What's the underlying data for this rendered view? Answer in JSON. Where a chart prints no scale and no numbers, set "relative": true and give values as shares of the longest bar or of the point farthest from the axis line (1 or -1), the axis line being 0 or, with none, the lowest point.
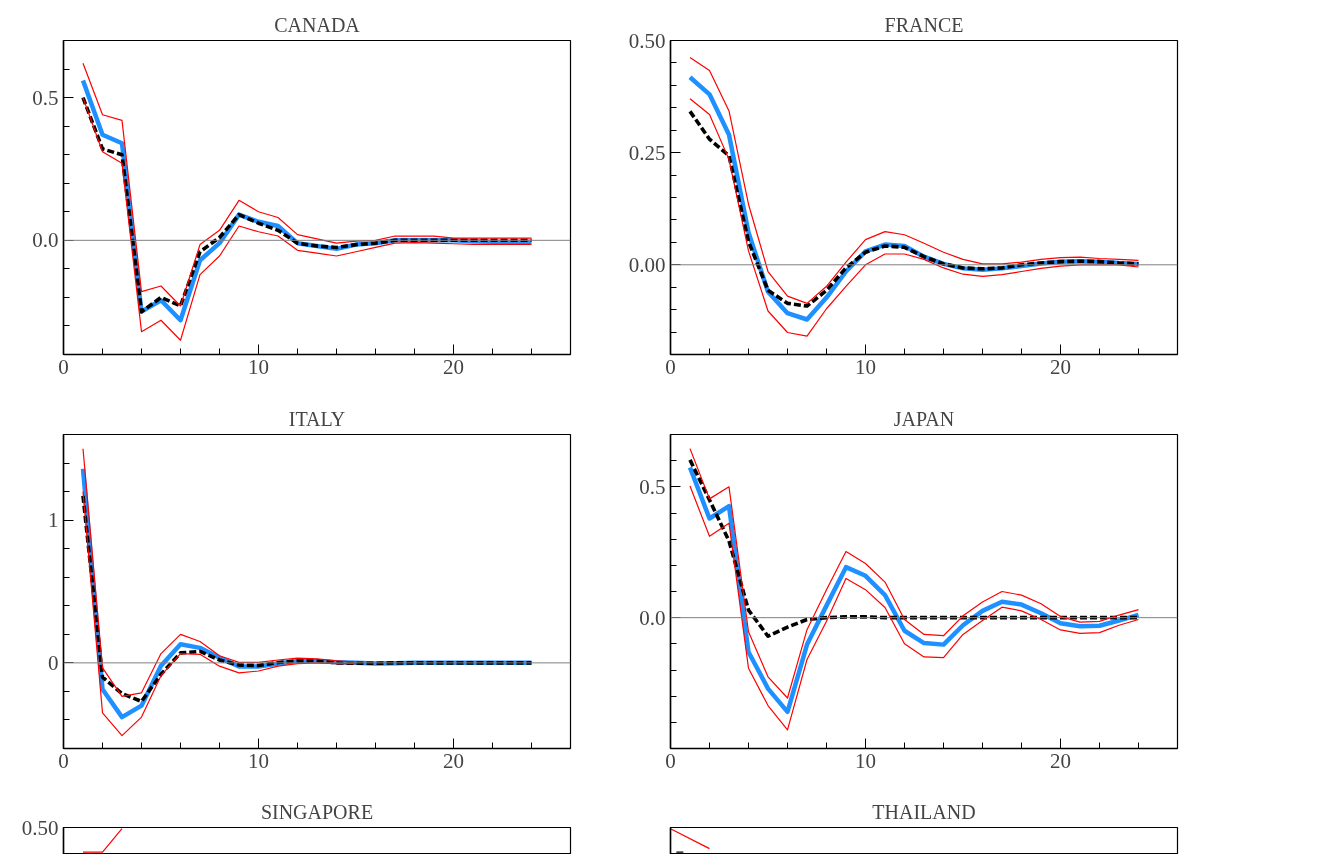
{
  "chart_data": [
    {
      "type": "line",
      "title": "CANADA",
      "x": [
        1,
        2,
        3,
        4,
        5,
        6,
        7,
        8,
        9,
        10,
        11,
        12,
        13,
        14,
        15,
        16,
        17,
        18,
        19,
        20,
        21,
        22,
        23,
        24
      ],
      "xlim": [
        0,
        26
      ],
      "xticks": [
        0,
        {
          "value": 2,
          "label": null
        },
        {
          "value": 4,
          "label": null
        },
        {
          "value": 6,
          "label": null
        },
        {
          "value": 8,
          "label": null
        },
        10,
        {
          "value": 12,
          "label": null
        },
        {
          "value": 14,
          "label": null
        },
        {
          "value": 16,
          "label": null
        },
        {
          "value": 18,
          "label": null
        },
        20,
        {
          "value": 22,
          "label": null
        },
        {
          "value": 24,
          "label": null
        }
      ],
      "ylim": [
        -0.4,
        0.7
      ],
      "yticks": [
        {
          "value": -0.3,
          "label": null
        },
        {
          "value": -0.2,
          "label": null
        },
        {
          "value": -0.1,
          "label": null
        },
        {
          "value": 0,
          "label": "0.0"
        },
        {
          "value": 0.1,
          "label": null
        },
        {
          "value": 0.2,
          "label": null
        },
        {
          "value": 0.3,
          "label": null
        },
        {
          "value": 0.4,
          "label": null
        },
        0.5,
        {
          "value": 0.6,
          "label": null
        }
      ],
      "ref_lines": [
        {
          "axis": "y",
          "value": 0,
          "color": "#808080"
        }
      ],
      "series": [
        {
          "color": "#ff0000",
          "line_style": "solid",
          "values": [
            0.62,
            0.44,
            0.42,
            -0.18,
            -0.16,
            -0.23,
            -0.015,
            0.035,
            0.14,
            0.1,
            0.08,
            0.02,
            0.005,
            -0.01,
            -0.003,
            0,
            0.015,
            0.015,
            0.015,
            0.008,
            0.008,
            0.008,
            0.008,
            0.008
          ]
        },
        {
          "color": "#ff0000",
          "line_style": "solid",
          "values": [
            0.5,
            0.31,
            0.27,
            -0.32,
            -0.28,
            -0.35,
            -0.12,
            -0.055,
            0.05,
            0.03,
            0.015,
            -0.035,
            -0.045,
            -0.055,
            -0.04,
            -0.025,
            -0.01,
            -0.008,
            -0.01,
            -0.012,
            -0.014,
            -0.014,
            -0.014,
            -0.014
          ]
        },
        {
          "color": "#1e90ff",
          "line_style": "solid",
          "values": [
            0.56,
            0.37,
            0.34,
            -0.25,
            -0.21,
            -0.28,
            -0.07,
            -0.01,
            0.09,
            0.065,
            0.05,
            -0.01,
            -0.02,
            -0.03,
            -0.015,
            -0.01,
            0,
            0,
            0,
            0,
            -0.003,
            -0.005,
            -0.005,
            -0.005
          ]
        },
        {
          "color": "#000000",
          "line_style": "dashed",
          "values": [
            0.5,
            0.32,
            0.3,
            -0.25,
            -0.2,
            -0.23,
            -0.04,
            0.01,
            0.09,
            0.06,
            0.035,
            -0.01,
            -0.02,
            -0.025,
            -0.015,
            -0.01,
            0,
            0,
            0,
            0,
            0,
            0,
            0,
            0
          ]
        }
      ]
    },
    {
      "type": "line",
      "title": "FRANCE",
      "x": [
        1,
        2,
        3,
        4,
        5,
        6,
        7,
        8,
        9,
        10,
        11,
        12,
        13,
        14,
        15,
        16,
        17,
        18,
        19,
        20,
        21,
        22,
        23,
        24
      ],
      "xlim": [
        0,
        26
      ],
      "xticks": [
        0,
        {
          "value": 2,
          "label": null
        },
        {
          "value": 4,
          "label": null
        },
        {
          "value": 6,
          "label": null
        },
        {
          "value": 8,
          "label": null
        },
        10,
        {
          "value": 12,
          "label": null
        },
        {
          "value": 14,
          "label": null
        },
        {
          "value": 16,
          "label": null
        },
        {
          "value": 18,
          "label": null
        },
        20,
        {
          "value": 22,
          "label": null
        },
        {
          "value": 24,
          "label": null
        }
      ],
      "ylim": [
        -0.2,
        0.5
      ],
      "yticks": [
        {
          "value": -0.15,
          "label": null
        },
        {
          "value": -0.1,
          "label": null
        },
        {
          "value": -0.05,
          "label": null
        },
        {
          "value": 0,
          "label": "0.00"
        },
        {
          "value": 0.05,
          "label": null
        },
        {
          "value": 0.1,
          "label": null
        },
        {
          "value": 0.15,
          "label": null
        },
        {
          "value": 0.2,
          "label": null
        },
        0.25,
        {
          "value": 0.3,
          "label": null
        },
        {
          "value": 0.35,
          "label": null
        },
        {
          "value": 0.4,
          "label": null
        },
        {
          "value": 0.45,
          "label": null
        },
        {
          "value": 0.5,
          "label": "0.50"
        }
      ],
      "ref_lines": [
        {
          "axis": "y",
          "value": 0,
          "color": "#808080"
        }
      ],
      "series": [
        {
          "color": "#ff0000",
          "line_style": "solid",
          "values": [
            0.462,
            0.433,
            0.343,
            0.135,
            -0.015,
            -0.07,
            -0.086,
            -0.048,
            0.006,
            0.056,
            0.074,
            0.067,
            0.048,
            0.028,
            0.012,
            0.002,
            0.002,
            0.006,
            0.012,
            0.016,
            0.017,
            0.014,
            0.012,
            0.01
          ]
        },
        {
          "color": "#ff0000",
          "line_style": "solid",
          "values": [
            0.37,
            0.335,
            0.235,
            0.031,
            -0.103,
            -0.151,
            -0.159,
            -0.098,
            -0.048,
            0,
            0.024,
            0.024,
            0.012,
            -0.007,
            -0.021,
            -0.026,
            -0.022,
            -0.015,
            -0.008,
            -0.003,
            0,
            0,
            0,
            -0.005
          ]
        },
        {
          "color": "#1e90ff",
          "line_style": "solid",
          "values": [
            0.418,
            0.38,
            0.29,
            0.072,
            -0.06,
            -0.108,
            -0.122,
            -0.073,
            -0.015,
            0.03,
            0.045,
            0.042,
            0.018,
            0.002,
            -0.008,
            -0.011,
            -0.008,
            -0.003,
            0.003,
            0.007,
            0.008,
            0.007,
            0.004,
            0.002
          ]
        },
        {
          "color": "#000000",
          "line_style": "dashed",
          "values": [
            0.342,
            0.28,
            0.243,
            0.052,
            -0.057,
            -0.086,
            -0.092,
            -0.057,
            -0.007,
            0.028,
            0.042,
            0.039,
            0.018,
            0.002,
            -0.007,
            -0.009,
            -0.007,
            0,
            0.004,
            0.007,
            0.008,
            0.007,
            0.004,
            0.002
          ]
        }
      ]
    },
    {
      "type": "line",
      "title": "ITALY",
      "x": [
        1,
        2,
        3,
        4,
        5,
        6,
        7,
        8,
        9,
        10,
        11,
        12,
        13,
        14,
        15,
        16,
        17,
        18,
        19,
        20,
        21,
        22,
        23,
        24
      ],
      "xlim": [
        0,
        26
      ],
      "xticks": [
        0,
        {
          "value": 2,
          "label": null
        },
        {
          "value": 4,
          "label": null
        },
        {
          "value": 6,
          "label": null
        },
        {
          "value": 8,
          "label": null
        },
        10,
        {
          "value": 12,
          "label": null
        },
        {
          "value": 14,
          "label": null
        },
        {
          "value": 16,
          "label": null
        },
        {
          "value": 18,
          "label": null
        },
        20,
        {
          "value": 22,
          "label": null
        },
        {
          "value": 24,
          "label": null
        }
      ],
      "ylim": [
        -0.6,
        1.6
      ],
      "yticks": [
        {
          "value": -0.4,
          "label": null
        },
        {
          "value": -0.2,
          "label": null
        },
        0,
        {
          "value": 0.2,
          "label": null
        },
        {
          "value": 0.4,
          "label": null
        },
        {
          "value": 0.6,
          "label": null
        },
        {
          "value": 0.8,
          "label": null
        },
        1,
        {
          "value": 1.2,
          "label": null
        },
        {
          "value": 1.4,
          "label": null
        }
      ],
      "ref_lines": [
        {
          "axis": "y",
          "value": 0,
          "color": "#808080"
        }
      ],
      "series": [
        {
          "color": "#ff0000",
          "line_style": "solid",
          "values": [
            1.5,
            -0.035,
            -0.235,
            -0.21,
            0.065,
            0.2,
            0.15,
            0.05,
            0.003,
            0.003,
            0.02,
            0.033,
            0.028,
            0.015,
            0.005,
            null,
            null,
            null,
            null,
            null,
            null,
            null,
            null,
            null
          ]
        },
        {
          "color": "#ff0000",
          "line_style": "solid",
          "values": [
            1.2,
            -0.35,
            -0.51,
            -0.38,
            -0.09,
            0.065,
            0.06,
            -0.023,
            -0.07,
            -0.057,
            -0.023,
            -0.005,
            0,
            -0.005,
            -0.005,
            null,
            null,
            null,
            null,
            null,
            null,
            null,
            null,
            null
          ]
        },
        {
          "color": "#1e90ff",
          "line_style": "solid",
          "values": [
            1.36,
            -0.185,
            -0.38,
            -0.3,
            -0.02,
            0.13,
            0.105,
            0.035,
            -0.025,
            -0.025,
            -0.005,
            0.013,
            0.013,
            0.005,
            0,
            -0.005,
            -0.003,
            0,
            0,
            0,
            0,
            0,
            0,
            0
          ]
        },
        {
          "color": "#000000",
          "line_style": "dashed",
          "values": [
            1.17,
            -0.1,
            -0.215,
            -0.27,
            -0.08,
            0.07,
            0.08,
            0.02,
            -0.015,
            -0.018,
            0.003,
            0.013,
            0.013,
            0,
            -0.003,
            -0.003,
            0,
            0,
            0,
            0,
            0,
            0,
            0,
            0
          ]
        }
      ]
    },
    {
      "type": "line",
      "title": "JAPAN",
      "x": [
        1,
        2,
        3,
        4,
        5,
        6,
        7,
        8,
        9,
        10,
        11,
        12,
        13,
        14,
        15,
        16,
        17,
        18,
        19,
        20,
        21,
        22,
        23,
        24
      ],
      "xlim": [
        0,
        26
      ],
      "xticks": [
        0,
        {
          "value": 2,
          "label": null
        },
        {
          "value": 4,
          "label": null
        },
        {
          "value": 6,
          "label": null
        },
        {
          "value": 8,
          "label": null
        },
        10,
        {
          "value": 12,
          "label": null
        },
        {
          "value": 14,
          "label": null
        },
        {
          "value": 16,
          "label": null
        },
        {
          "value": 18,
          "label": null
        },
        20,
        {
          "value": 22,
          "label": null
        },
        {
          "value": 24,
          "label": null
        }
      ],
      "ylim": [
        -0.5,
        0.7
      ],
      "yticks": [
        {
          "value": -0.4,
          "label": null
        },
        {
          "value": -0.3,
          "label": null
        },
        {
          "value": -0.2,
          "label": null
        },
        {
          "value": -0.1,
          "label": null
        },
        {
          "value": 0,
          "label": "0.0"
        },
        {
          "value": 0.1,
          "label": null
        },
        {
          "value": 0.2,
          "label": null
        },
        {
          "value": 0.3,
          "label": null
        },
        {
          "value": 0.4,
          "label": null
        },
        0.5,
        {
          "value": 0.6,
          "label": null
        }
      ],
      "ref_lines": [
        {
          "axis": "y",
          "value": 0,
          "color": "#808080"
        }
      ],
      "series": [
        {
          "color": "#ff0000",
          "line_style": "solid",
          "values": [
            0.646,
            0.454,
            0.5,
            -0.054,
            -0.226,
            -0.307,
            -0.046,
            0.107,
            0.253,
            0.207,
            0.136,
            -0.007,
            -0.064,
            -0.069,
            0.007,
            0.06,
            0.1,
            0.086,
            0.053,
            0.004,
            -0.017,
            -0.014,
            0.01,
            0.031
          ]
        },
        {
          "color": "#ff0000",
          "line_style": "solid",
          "values": [
            0.503,
            0.311,
            0.361,
            -0.193,
            -0.336,
            -0.429,
            -0.16,
            -0.014,
            0.15,
            0.107,
            0.039,
            -0.1,
            -0.15,
            -0.153,
            -0.064,
            -0.011,
            0.04,
            0.026,
            -0.007,
            -0.047,
            -0.06,
            -0.057,
            -0.029,
            -0.007
          ]
        },
        {
          "color": "#1e90ff",
          "line_style": "solid",
          "values": [
            0.574,
            0.379,
            0.426,
            -0.131,
            -0.271,
            -0.36,
            -0.103,
            0.046,
            0.193,
            0.16,
            0.086,
            -0.05,
            -0.097,
            -0.103,
            -0.029,
            0.026,
            0.061,
            0.05,
            0.017,
            -0.021,
            -0.033,
            -0.031,
            -0.011,
            0.011
          ]
        },
        {
          "color": "#000000",
          "line_style": "dashed",
          "values": [
            0.603,
            0.45,
            0.293,
            0.029,
            -0.071,
            -0.036,
            -0.007,
            0,
            0.003,
            0.003,
            0,
            0,
            0,
            0,
            0,
            0,
            0,
            0,
            0,
            0,
            0,
            0,
            0,
            0
          ]
        }
      ]
    },
    {
      "type": "line",
      "title": "SINGAPORE",
      "xlim": [
        0,
        26
      ],
      "relative": true,
      "annotations": [
        "0.50"
      ],
      "series": [
        {
          "color": "#ff0000",
          "line_style": "solid",
          "x": [
            1,
            2,
            3
          ],
          "values": [
            0,
            0,
            1
          ]
        }
      ]
    },
    {
      "type": "line",
      "title": "THAILAND",
      "xlim": [
        0,
        26
      ],
      "relative": true,
      "series": [
        {
          "color": "#ff0000",
          "line_style": "solid",
          "x": [
            0,
            2
          ],
          "values": [
            1,
            0.15
          ]
        },
        {
          "color": "#000000",
          "line_style": "dashed",
          "x": [
            0.3,
            0.8
          ],
          "values": [
            0,
            0
          ]
        }
      ]
    }
  ]
}
